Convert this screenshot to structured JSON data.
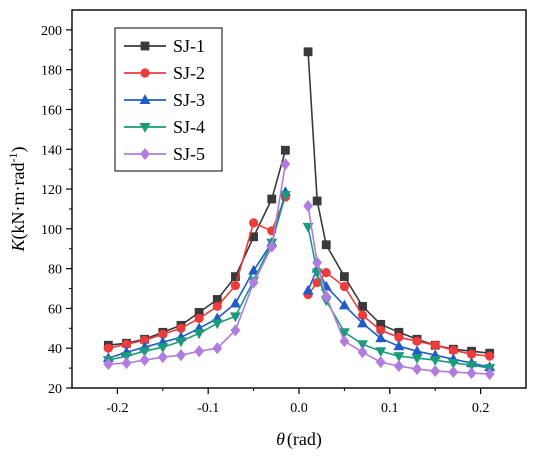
{
  "chart_data": {
    "type": "line",
    "xlabel": {
      "symbol": "θ",
      "unit": "(rad)"
    },
    "ylabel": {
      "symbol": "K",
      "unit_prefix": "(kN·m·rad",
      "unit_sup": "-1",
      "unit_suffix": ")"
    },
    "xlim": [
      -0.25,
      0.25
    ],
    "ylim": [
      20,
      210
    ],
    "xticks": [
      -0.2,
      -0.1,
      0.0,
      0.1,
      0.2
    ],
    "xtick_labels": [
      "-0.2",
      "-0.1",
      "0.0",
      "0.1",
      "0.2"
    ],
    "yticks": [
      20,
      40,
      60,
      80,
      100,
      120,
      140,
      160,
      180,
      200
    ],
    "ytick_labels": [
      "20",
      "40",
      "60",
      "80",
      "100",
      "120",
      "140",
      "160",
      "180",
      "200"
    ],
    "legend_position": "top-left",
    "series": [
      {
        "name": "SJ-1",
        "color": "#3a3a3a",
        "marker": "square",
        "neg": [
          [
            -0.21,
            41.5
          ],
          [
            -0.19,
            42.5
          ],
          [
            -0.17,
            44.5
          ],
          [
            -0.15,
            48
          ],
          [
            -0.13,
            51.5
          ],
          [
            -0.11,
            58
          ],
          [
            -0.09,
            64.5
          ],
          [
            -0.07,
            76
          ],
          [
            -0.05,
            96
          ],
          [
            -0.03,
            115
          ],
          [
            -0.015,
            139.5
          ]
        ],
        "pos": [
          [
            0.01,
            189
          ],
          [
            0.02,
            114
          ],
          [
            0.03,
            92
          ],
          [
            0.05,
            76
          ],
          [
            0.07,
            61
          ],
          [
            0.09,
            52
          ],
          [
            0.11,
            48
          ],
          [
            0.13,
            44.5
          ],
          [
            0.15,
            41.5
          ],
          [
            0.17,
            39.5
          ],
          [
            0.19,
            38.5
          ],
          [
            0.21,
            37.5
          ]
        ]
      },
      {
        "name": "SJ-2",
        "color": "#ee3b3b",
        "marker": "circle",
        "neg": [
          [
            -0.21,
            40
          ],
          [
            -0.19,
            42
          ],
          [
            -0.17,
            44
          ],
          [
            -0.15,
            47
          ],
          [
            -0.13,
            50
          ],
          [
            -0.11,
            55
          ],
          [
            -0.09,
            61
          ],
          [
            -0.07,
            71.5
          ],
          [
            -0.05,
            103
          ],
          [
            -0.03,
            99
          ],
          [
            -0.015,
            116
          ]
        ],
        "pos": [
          [
            0.01,
            67
          ],
          [
            0.02,
            73
          ],
          [
            0.03,
            78
          ],
          [
            0.05,
            71
          ],
          [
            0.07,
            56.5
          ],
          [
            0.09,
            49
          ],
          [
            0.11,
            45.5
          ],
          [
            0.13,
            43.5
          ],
          [
            0.15,
            41.5
          ],
          [
            0.17,
            39
          ],
          [
            0.19,
            37
          ],
          [
            0.21,
            36
          ]
        ]
      },
      {
        "name": "SJ-3",
        "color": "#1f5cc8",
        "marker": "triangle-up",
        "neg": [
          [
            -0.21,
            35
          ],
          [
            -0.19,
            38
          ],
          [
            -0.17,
            40.5
          ],
          [
            -0.15,
            43
          ],
          [
            -0.13,
            45.5
          ],
          [
            -0.11,
            50
          ],
          [
            -0.09,
            55
          ],
          [
            -0.07,
            62.5
          ],
          [
            -0.05,
            79
          ],
          [
            -0.03,
            93
          ],
          [
            -0.015,
            118.5
          ]
        ],
        "pos": [
          [
            0.01,
            69
          ],
          [
            0.02,
            80
          ],
          [
            0.03,
            71
          ],
          [
            0.05,
            61.5
          ],
          [
            0.07,
            52.5
          ],
          [
            0.09,
            45
          ],
          [
            0.11,
            41
          ],
          [
            0.13,
            38.5
          ],
          [
            0.15,
            36.5
          ],
          [
            0.17,
            34.5
          ],
          [
            0.19,
            32.5
          ],
          [
            0.21,
            30.5
          ]
        ]
      },
      {
        "name": "SJ-4",
        "color": "#1a9c7a",
        "marker": "triangle-down",
        "neg": [
          [
            -0.21,
            34
          ],
          [
            -0.19,
            36
          ],
          [
            -0.17,
            38.5
          ],
          [
            -0.15,
            40.5
          ],
          [
            -0.13,
            43.5
          ],
          [
            -0.11,
            47.5
          ],
          [
            -0.09,
            52.5
          ],
          [
            -0.07,
            56
          ],
          [
            -0.05,
            74
          ],
          [
            -0.03,
            93
          ],
          [
            -0.015,
            117
          ]
        ],
        "pos": [
          [
            0.01,
            101
          ],
          [
            0.02,
            78
          ],
          [
            0.03,
            64
          ],
          [
            0.05,
            48
          ],
          [
            0.07,
            42
          ],
          [
            0.09,
            38.5
          ],
          [
            0.11,
            36
          ],
          [
            0.13,
            35
          ],
          [
            0.15,
            34
          ],
          [
            0.17,
            32.5
          ],
          [
            0.19,
            31.5
          ],
          [
            0.21,
            30
          ]
        ]
      },
      {
        "name": "SJ-5",
        "color": "#b07ce0",
        "marker": "diamond",
        "neg": [
          [
            -0.21,
            32
          ],
          [
            -0.19,
            32.5
          ],
          [
            -0.17,
            34
          ],
          [
            -0.15,
            35.5
          ],
          [
            -0.13,
            36.5
          ],
          [
            -0.11,
            38.5
          ],
          [
            -0.09,
            40
          ],
          [
            -0.07,
            49
          ],
          [
            -0.05,
            73
          ],
          [
            -0.03,
            91
          ],
          [
            -0.015,
            132.5
          ]
        ],
        "pos": [
          [
            0.01,
            111.5
          ],
          [
            0.02,
            83
          ],
          [
            0.03,
            66
          ],
          [
            0.05,
            43.5
          ],
          [
            0.07,
            38
          ],
          [
            0.09,
            33
          ],
          [
            0.11,
            31
          ],
          [
            0.13,
            29.5
          ],
          [
            0.15,
            28.5
          ],
          [
            0.17,
            28
          ],
          [
            0.19,
            27.5
          ],
          [
            0.21,
            27
          ]
        ]
      }
    ]
  }
}
